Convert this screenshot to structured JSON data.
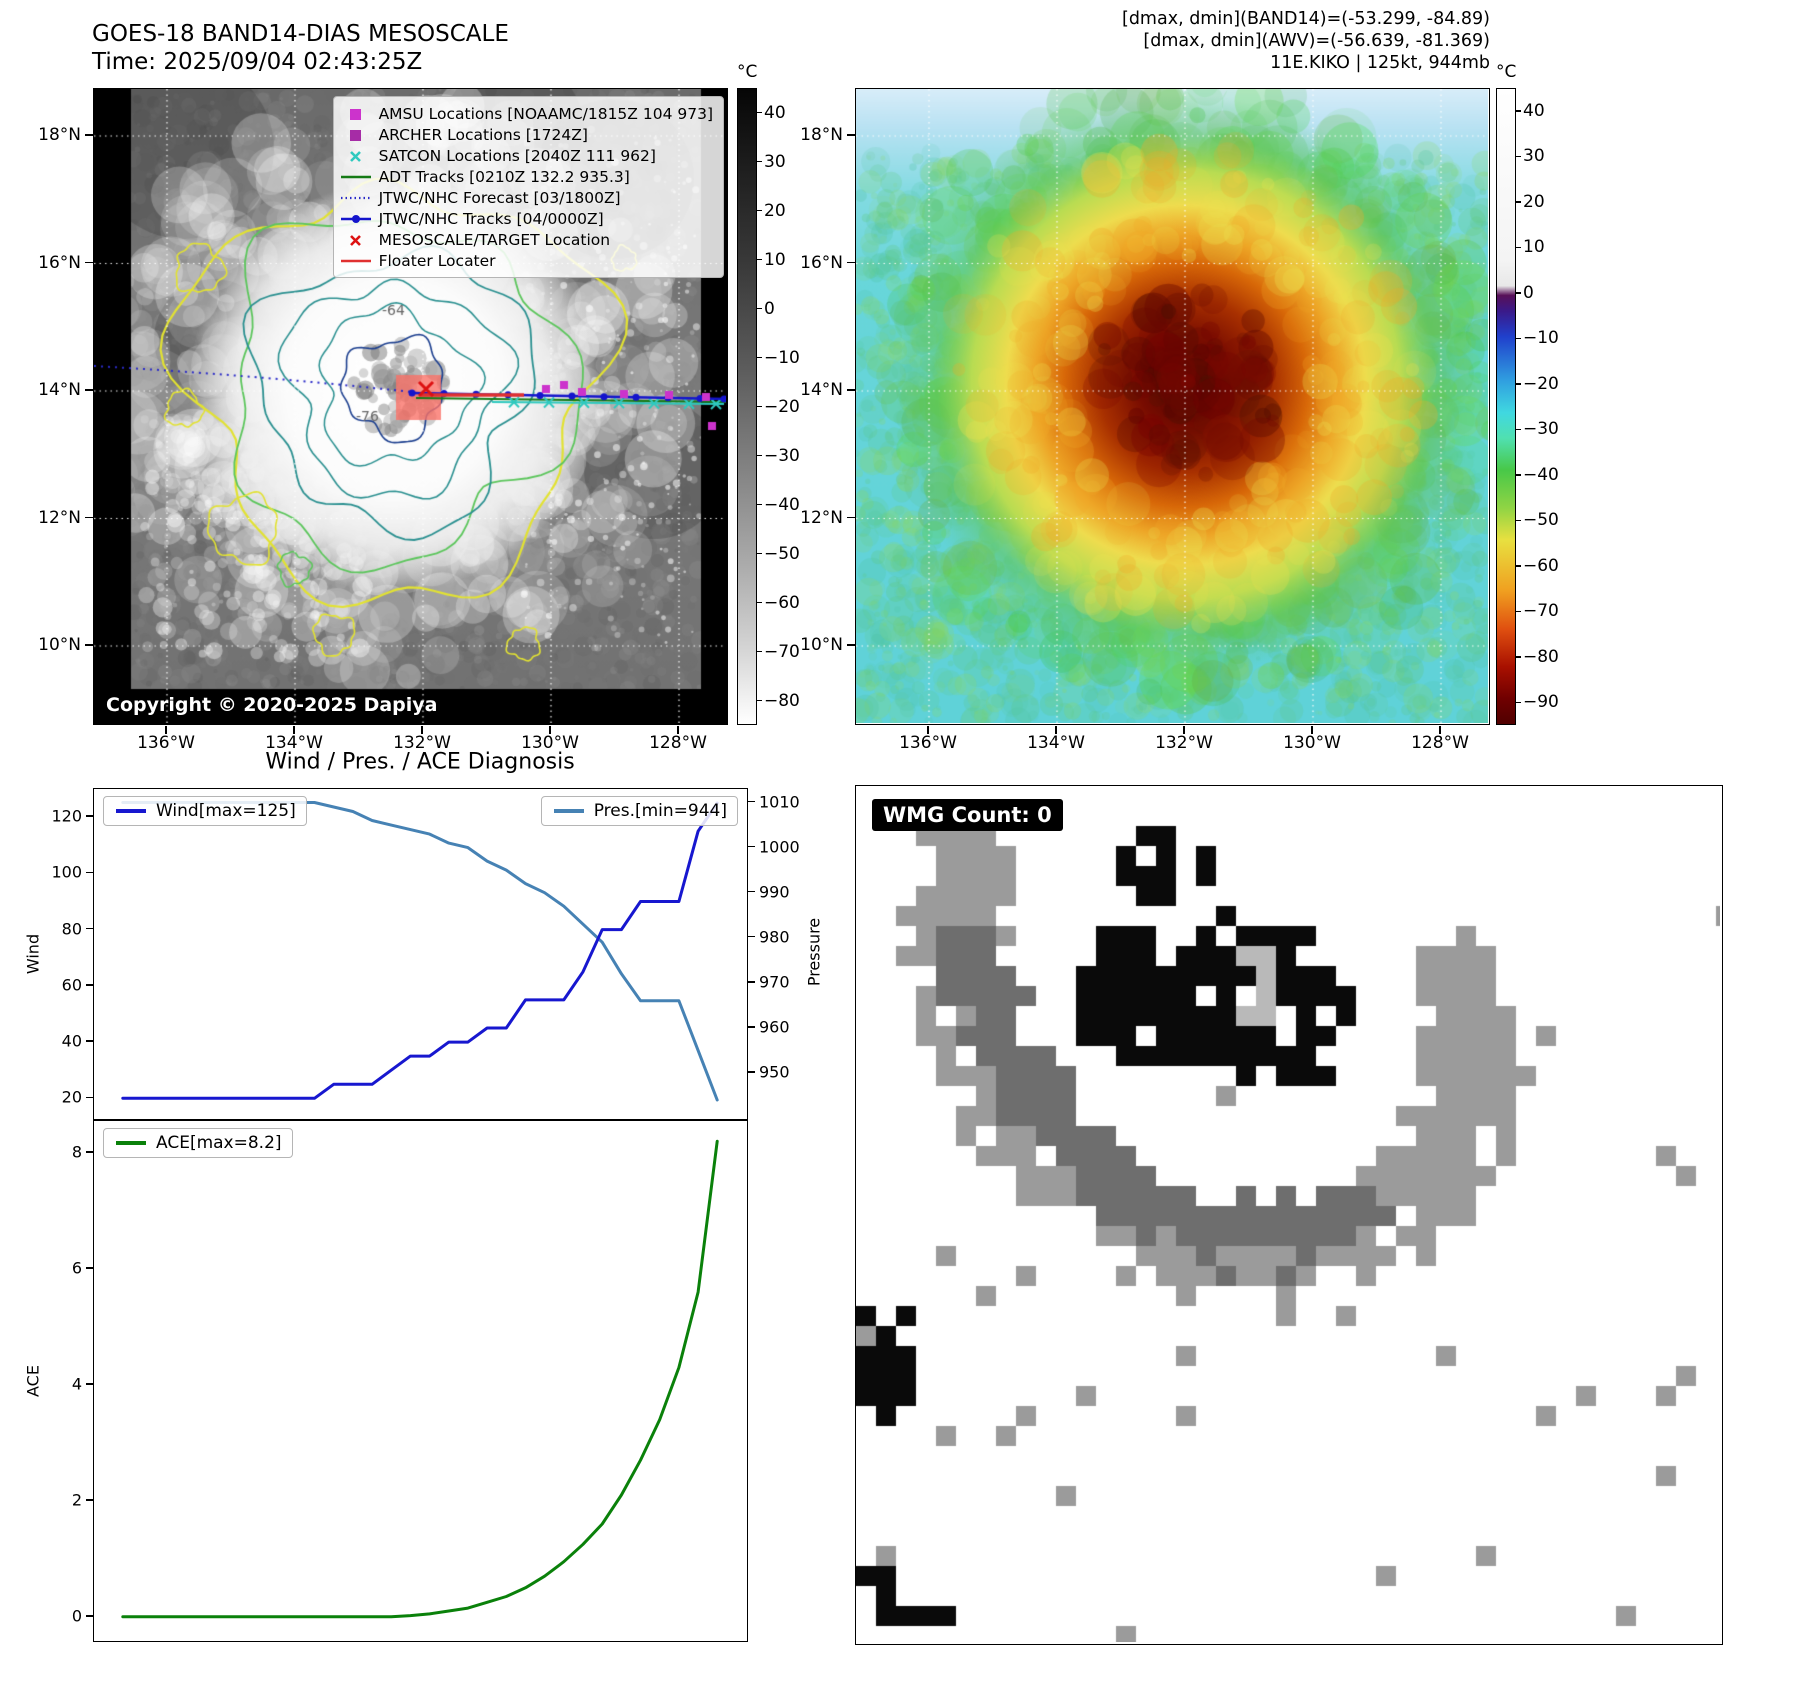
{
  "colors": {
    "wind": "#1717cf",
    "pressure": "#4682b4",
    "ace": "#0a810a",
    "amsu": "#cc33cc",
    "archer": "#a62ca6",
    "satcon": "#2fc9bf",
    "adt": "#157a15",
    "jtwc_forecast": "#2a2ac8",
    "jtwc_tracks": "#1414cc",
    "mesoscale_target": "#dd1111",
    "floater": "#e03030"
  },
  "band14_panel": {
    "title_line1": "GOES-18 BAND14-DIAS MESOSCALE",
    "title_line2": "Time: 2025/09/04 02:43:25Z",
    "copyright": "Copyright © 2020-2025 Dapiya",
    "colorbar_unit": "°C",
    "colorbar_ticks": [
      "40",
      "30",
      "20",
      "10",
      "0",
      "−10",
      "−20",
      "−30",
      "−40",
      "−50",
      "−60",
      "−70",
      "−80"
    ],
    "lat_ticks": [
      "18°N",
      "16°N",
      "14°N",
      "12°N",
      "10°N"
    ],
    "lon_ticks": [
      "136°W",
      "134°W",
      "132°W",
      "130°W",
      "128°W"
    ],
    "contour_labels": [
      "-64",
      "-76"
    ],
    "legend_items": [
      {
        "marker": "square",
        "color": "#cc33cc",
        "label": "AMSU Locations [NOAAMC/1815Z 104 973]"
      },
      {
        "marker": "square",
        "color": "#a62ca6",
        "label": "ARCHER Locations [1724Z]"
      },
      {
        "marker": "x",
        "color": "#2fc9bf",
        "label": "SATCON Locations [2040Z 111 962]"
      },
      {
        "marker": "line",
        "color": "#157a15",
        "label": "ADT Tracks [0210Z 132.2 935.3]"
      },
      {
        "marker": "dotted-line",
        "color": "#2a2ac8",
        "label": "JTWC/NHC Forecast [03/1800Z]"
      },
      {
        "marker": "line-dot",
        "color": "#1414cc",
        "label": "JTWC/NHC Tracks [04/0000Z]"
      },
      {
        "marker": "x",
        "color": "#dd1111",
        "label": "MESOSCALE/TARGET Location"
      },
      {
        "marker": "line",
        "color": "#e03030",
        "label": "Floater Locater"
      }
    ]
  },
  "awv_panel": {
    "info_line1": "[dmax, dmin](BAND14)=(-53.299, -84.89)",
    "info_line2": "[dmax, dmin](AWV)=(-56.639, -81.369)",
    "info_line3": "11E.KIKO | 125kt, 944mb",
    "colorbar_unit": "°C",
    "colorbar_ticks": [
      "40",
      "30",
      "20",
      "10",
      "0",
      "−10",
      "−20",
      "−30",
      "−40",
      "−50",
      "−60",
      "−70",
      "−80",
      "−90"
    ],
    "lat_ticks": [
      "18°N",
      "16°N",
      "14°N",
      "12°N",
      "10°N"
    ],
    "lon_ticks": [
      "136°W",
      "134°W",
      "132°W",
      "130°W",
      "128°W"
    ]
  },
  "diagnosis": {
    "title": "Wind / Pres. / ACE Diagnosis",
    "wind_legend": "Wind[max=125]",
    "pres_legend": "Pres.[min=944]",
    "ace_legend": "ACE[max=8.2]",
    "wind_axis_label": "Wind",
    "pres_axis_label": "Pressure",
    "ace_axis_label": "ACE"
  },
  "wmg_panel": {
    "count_label": "WMG Count: 0"
  },
  "chart_data": [
    {
      "type": "line",
      "title": "Wind / Pres. / ACE Diagnosis",
      "x_axis_note": "analysis time steps (no x tick labels shown)",
      "x": [
        0,
        1,
        2,
        3,
        4,
        5,
        6,
        7,
        8,
        9,
        10,
        11,
        12,
        13,
        14,
        15,
        16,
        17,
        18,
        19,
        20,
        21,
        22,
        23,
        24,
        25,
        26,
        27,
        28,
        29,
        30,
        31
      ],
      "series": [
        {
          "name": "Wind[max=125]",
          "axis": "left",
          "color": "#1717cf",
          "values": [
            20,
            20,
            20,
            20,
            20,
            20,
            20,
            20,
            20,
            20,
            20,
            25,
            25,
            25,
            30,
            35,
            35,
            40,
            40,
            45,
            45,
            55,
            55,
            55,
            65,
            80,
            80,
            90,
            90,
            90,
            115,
            125
          ]
        },
        {
          "name": "Pres.[min=944]",
          "axis": "right",
          "color": "#4682b4",
          "values": [
            1010,
            1010,
            1010,
            1010,
            1010,
            1010,
            1010,
            1010,
            1010,
            1010,
            1010,
            1009,
            1008,
            1006,
            1005,
            1004,
            1003,
            1001,
            1000,
            997,
            995,
            992,
            990,
            987,
            983,
            979,
            972,
            966,
            966,
            966,
            955,
            944
          ]
        }
      ],
      "left_ylabel": "Wind",
      "left_ylim": [
        13,
        130
      ],
      "left_ticks": [
        20,
        40,
        60,
        80,
        100,
        120
      ],
      "right_ylabel": "Pressure",
      "right_ylim": [
        940,
        1013
      ],
      "right_ticks": [
        950,
        960,
        970,
        980,
        990,
        1000,
        1010
      ],
      "grid": false,
      "legend_position": "upper-left and upper-right"
    },
    {
      "type": "line",
      "x": [
        0,
        1,
        2,
        3,
        4,
        5,
        6,
        7,
        8,
        9,
        10,
        11,
        12,
        13,
        14,
        15,
        16,
        17,
        18,
        19,
        20,
        21,
        22,
        23,
        24,
        25,
        26,
        27,
        28,
        29,
        30,
        31
      ],
      "series": [
        {
          "name": "ACE[max=8.2]",
          "color": "#0a810a",
          "values": [
            0,
            0,
            0,
            0,
            0,
            0,
            0,
            0,
            0,
            0,
            0,
            0,
            0,
            0,
            0,
            0.02,
            0.05,
            0.1,
            0.15,
            0.25,
            0.35,
            0.5,
            0.7,
            0.95,
            1.25,
            1.6,
            2.1,
            2.7,
            3.4,
            4.3,
            5.6,
            8.2
          ]
        }
      ],
      "ylabel": "ACE",
      "ylim": [
        -0.4,
        8.55
      ],
      "yticks": [
        0,
        2,
        4,
        6,
        8
      ],
      "grid": false,
      "legend_position": "upper-left"
    }
  ]
}
